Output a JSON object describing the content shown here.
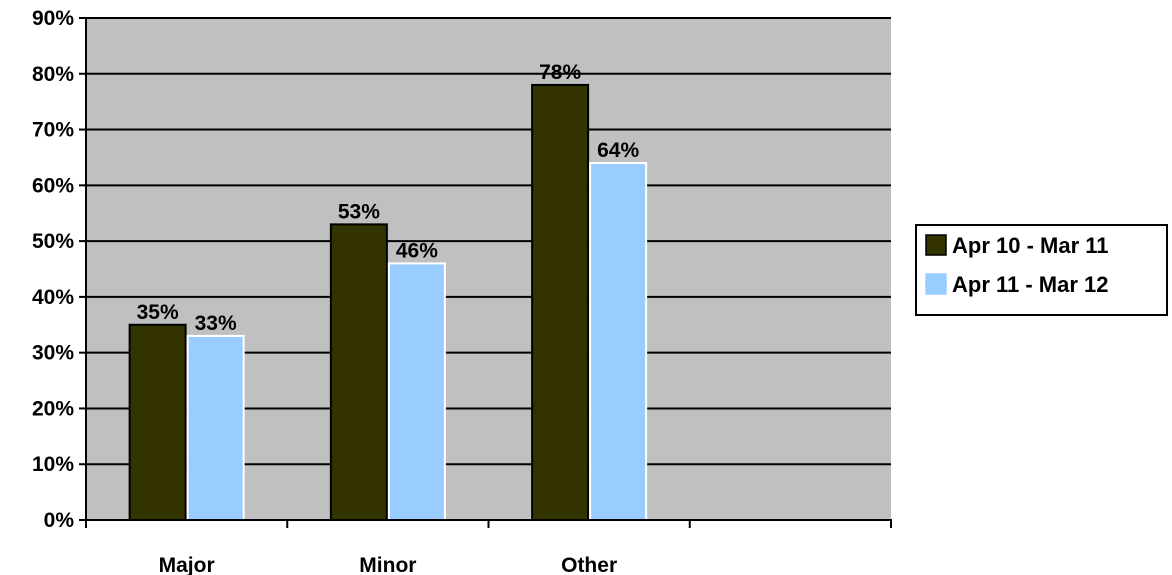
{
  "chart_data": {
    "type": "bar",
    "categories": [
      "Major",
      "Minor",
      "Other",
      ""
    ],
    "series": [
      {
        "name": "Apr 10 - Mar 11",
        "values": [
          35,
          53,
          78,
          null
        ],
        "color": "#333300"
      },
      {
        "name": "Apr 11 - Mar 12",
        "values": [
          33,
          46,
          64,
          null
        ],
        "color": "#99ccff"
      }
    ],
    "title": "",
    "xlabel": "",
    "ylabel": "",
    "ylim": [
      0,
      90
    ],
    "yticks": [
      0,
      10,
      20,
      30,
      40,
      50,
      60,
      70,
      80,
      90
    ],
    "ytick_labels": [
      "0%",
      "10%",
      "20%",
      "30%",
      "40%",
      "50%",
      "60%",
      "70%",
      "80%",
      "90%"
    ],
    "data_labels": [
      [
        "35%",
        "53%",
        "78%"
      ],
      [
        "33%",
        "46%",
        "64%"
      ]
    ],
    "grid": true,
    "plot_background": "#c0c0c0",
    "legend_position": "right"
  }
}
